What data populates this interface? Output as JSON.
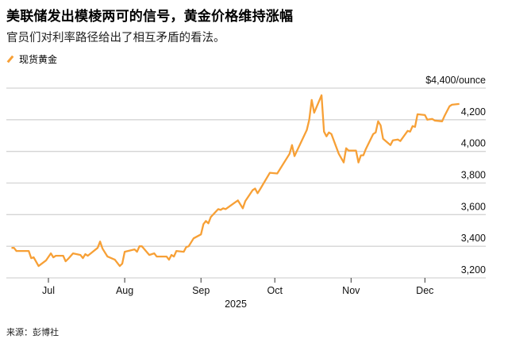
{
  "title": "美联储发出模棱两可的信号，黄金价格维持涨幅",
  "subtitle": "官员们对利率路径给出了相互矛盾的看法。",
  "source": "来源：彭博社",
  "chart_data": {
    "type": "line",
    "unit_label": "$4,400/ounce",
    "xlabel": "2025",
    "ylim": [
      3200,
      4400
    ],
    "yticks": [
      3200,
      3400,
      3600,
      3800,
      4000,
      4200,
      4400
    ],
    "ytick_labels": [
      "3,200",
      "3,400",
      "3,600",
      "3,800",
      "4,000",
      "4,200",
      "$4,400/ounce"
    ],
    "xticks": [
      "2025-07-01",
      "2025-08-01",
      "2025-09-01",
      "2025-10-01",
      "2025-11-01",
      "2025-12-01"
    ],
    "xtick_labels": [
      "Jul",
      "Aug",
      "Sep",
      "Oct",
      "Nov",
      "Dec"
    ],
    "grid": true,
    "legend_position": "top-left",
    "colors": {
      "series": "#f7a036",
      "grid": "#d4d4d4"
    },
    "series": [
      {
        "name": "现货黄金",
        "points": [
          [
            "2025-06-16",
            3390
          ],
          [
            "2025-06-17",
            3390
          ],
          [
            "2025-06-18",
            3370
          ],
          [
            "2025-06-23",
            3370
          ],
          [
            "2025-06-24",
            3325
          ],
          [
            "2025-06-25",
            3330
          ],
          [
            "2025-06-27",
            3275
          ],
          [
            "2025-06-30",
            3310
          ],
          [
            "2025-07-02",
            3355
          ],
          [
            "2025-07-03",
            3330
          ],
          [
            "2025-07-04",
            3340
          ],
          [
            "2025-07-07",
            3340
          ],
          [
            "2025-07-08",
            3305
          ],
          [
            "2025-07-09",
            3320
          ],
          [
            "2025-07-11",
            3355
          ],
          [
            "2025-07-14",
            3345
          ],
          [
            "2025-07-15",
            3325
          ],
          [
            "2025-07-16",
            3350
          ],
          [
            "2025-07-17",
            3340
          ],
          [
            "2025-07-21",
            3390
          ],
          [
            "2025-07-22",
            3430
          ],
          [
            "2025-07-23",
            3385
          ],
          [
            "2025-07-25",
            3335
          ],
          [
            "2025-07-28",
            3315
          ],
          [
            "2025-07-30",
            3275
          ],
          [
            "2025-07-31",
            3290
          ],
          [
            "2025-08-01",
            3365
          ],
          [
            "2025-08-05",
            3380
          ],
          [
            "2025-08-06",
            3365
          ],
          [
            "2025-08-07",
            3400
          ],
          [
            "2025-08-08",
            3400
          ],
          [
            "2025-08-11",
            3345
          ],
          [
            "2025-08-13",
            3355
          ],
          [
            "2025-08-14",
            3335
          ],
          [
            "2025-08-18",
            3335
          ],
          [
            "2025-08-19",
            3315
          ],
          [
            "2025-08-20",
            3345
          ],
          [
            "2025-08-21",
            3335
          ],
          [
            "2025-08-22",
            3370
          ],
          [
            "2025-08-25",
            3365
          ],
          [
            "2025-08-26",
            3395
          ],
          [
            "2025-08-27",
            3400
          ],
          [
            "2025-08-29",
            3450
          ],
          [
            "2025-09-01",
            3475
          ],
          [
            "2025-09-02",
            3540
          ],
          [
            "2025-09-03",
            3560
          ],
          [
            "2025-09-04",
            3545
          ],
          [
            "2025-09-05",
            3585
          ],
          [
            "2025-09-08",
            3635
          ],
          [
            "2025-09-09",
            3630
          ],
          [
            "2025-09-10",
            3640
          ],
          [
            "2025-09-11",
            3635
          ],
          [
            "2025-09-16",
            3690
          ],
          [
            "2025-09-18",
            3640
          ],
          [
            "2025-09-19",
            3685
          ],
          [
            "2025-09-22",
            3755
          ],
          [
            "2025-09-23",
            3765
          ],
          [
            "2025-09-24",
            3735
          ],
          [
            "2025-09-25",
            3760
          ],
          [
            "2025-09-29",
            3865
          ],
          [
            "2025-10-02",
            3860
          ],
          [
            "2025-10-07",
            3985
          ],
          [
            "2025-10-08",
            4040
          ],
          [
            "2025-10-09",
            3970
          ],
          [
            "2025-10-14",
            4135
          ],
          [
            "2025-10-15",
            4200
          ],
          [
            "2025-10-16",
            4325
          ],
          [
            "2025-10-17",
            4245
          ],
          [
            "2025-10-20",
            4355
          ],
          [
            "2025-10-21",
            4125
          ],
          [
            "2025-10-22",
            4095
          ],
          [
            "2025-10-23",
            4120
          ],
          [
            "2025-10-24",
            4110
          ],
          [
            "2025-10-27",
            3985
          ],
          [
            "2025-10-29",
            3930
          ],
          [
            "2025-10-30",
            4020
          ],
          [
            "2025-10-31",
            4005
          ],
          [
            "2025-11-03",
            4005
          ],
          [
            "2025-11-04",
            3930
          ],
          [
            "2025-11-05",
            3975
          ],
          [
            "2025-11-06",
            3975
          ],
          [
            "2025-11-07",
            4015
          ],
          [
            "2025-11-10",
            4110
          ],
          [
            "2025-11-11",
            4120
          ],
          [
            "2025-11-12",
            4190
          ],
          [
            "2025-11-13",
            4165
          ],
          [
            "2025-11-14",
            4080
          ],
          [
            "2025-11-17",
            4040
          ],
          [
            "2025-11-18",
            4070
          ],
          [
            "2025-11-20",
            4075
          ],
          [
            "2025-11-21",
            4065
          ],
          [
            "2025-11-24",
            4130
          ],
          [
            "2025-11-25",
            4125
          ],
          [
            "2025-11-26",
            4160
          ],
          [
            "2025-11-27",
            4155
          ],
          [
            "2025-11-28",
            4235
          ],
          [
            "2025-12-01",
            4230
          ],
          [
            "2025-12-02",
            4200
          ],
          [
            "2025-12-04",
            4205
          ],
          [
            "2025-12-05",
            4195
          ],
          [
            "2025-12-08",
            4190
          ],
          [
            "2025-12-09",
            4225
          ],
          [
            "2025-12-11",
            4285
          ],
          [
            "2025-12-12",
            4295
          ],
          [
            "2025-12-15",
            4300
          ]
        ]
      }
    ]
  }
}
